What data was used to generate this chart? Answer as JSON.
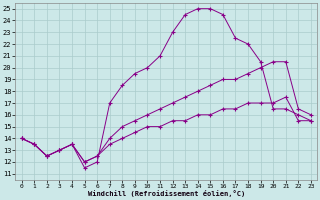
{
  "xlabel": "Windchill (Refroidissement éolien,°C)",
  "xlim": [
    -0.5,
    23.5
  ],
  "ylim": [
    10.5,
    25.5
  ],
  "yticks": [
    11,
    12,
    13,
    14,
    15,
    16,
    17,
    18,
    19,
    20,
    21,
    22,
    23,
    24,
    25
  ],
  "xticks": [
    0,
    1,
    2,
    3,
    4,
    5,
    6,
    7,
    8,
    9,
    10,
    11,
    12,
    13,
    14,
    15,
    16,
    17,
    18,
    19,
    20,
    21,
    22,
    23
  ],
  "bg_color": "#cce8e8",
  "line_color": "#880088",
  "grid_color": "#aacccc",
  "series": [
    {
      "x": [
        0,
        1,
        2,
        3,
        4,
        5,
        6,
        7,
        8,
        9,
        10,
        11,
        12,
        13,
        14,
        15,
        16,
        17,
        18,
        19,
        20,
        21,
        22,
        23
      ],
      "y": [
        14,
        13.5,
        12.5,
        13,
        13.5,
        12,
        12.5,
        13.5,
        14,
        14.5,
        15,
        15,
        15.5,
        15.5,
        16,
        16,
        16.5,
        16.5,
        17,
        17,
        17,
        17.5,
        15.5,
        15.5
      ]
    },
    {
      "x": [
        0,
        1,
        2,
        3,
        4,
        5,
        6,
        7,
        8,
        9,
        10,
        11,
        12,
        13,
        14,
        15,
        16,
        17,
        18,
        19,
        20,
        21,
        22,
        23
      ],
      "y": [
        14,
        13.5,
        12.5,
        13,
        13.5,
        12,
        12.5,
        14,
        15,
        15.5,
        16,
        16.5,
        17,
        17.5,
        18,
        18.5,
        19,
        19,
        19.5,
        20,
        20.5,
        20.5,
        16.5,
        16
      ]
    },
    {
      "x": [
        0,
        1,
        2,
        3,
        4,
        5,
        6,
        7,
        8,
        9,
        10,
        11,
        12,
        13,
        14,
        15,
        16,
        17,
        18,
        19,
        20,
        21,
        22,
        23
      ],
      "y": [
        14,
        13.5,
        12.5,
        13,
        13.5,
        11.5,
        12,
        17,
        18.5,
        19.5,
        20,
        21,
        23,
        24.5,
        25,
        25,
        24.5,
        22.5,
        22,
        20.5,
        16.5,
        16.5,
        16,
        15.5
      ]
    }
  ]
}
